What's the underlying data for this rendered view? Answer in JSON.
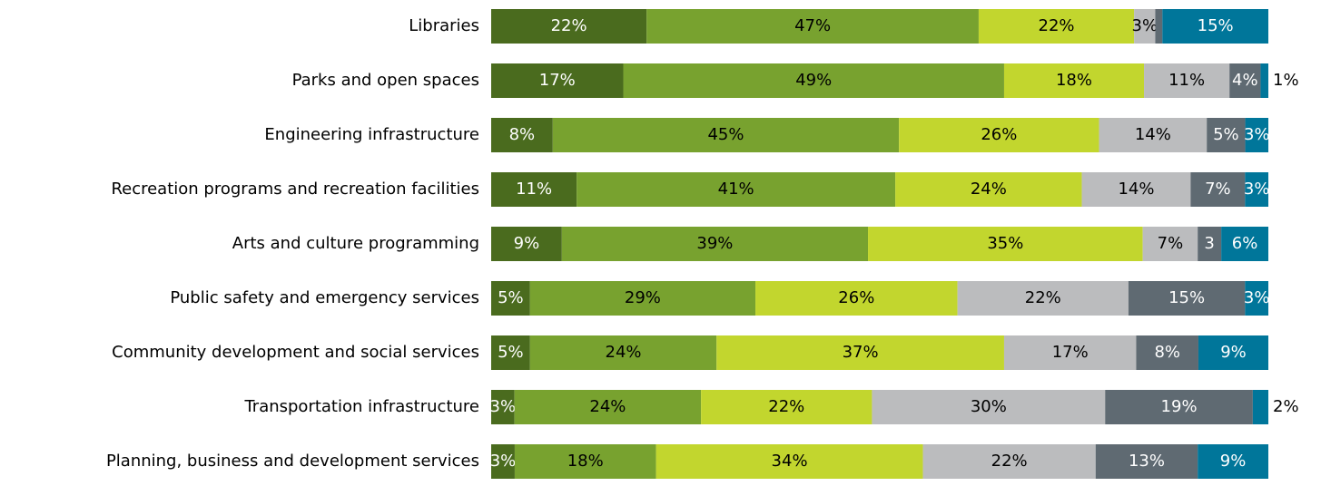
{
  "chart_data": {
    "type": "stacked-bar-100",
    "categories": [
      "Libraries",
      "Parks and open spaces",
      "Engineering infrastructure",
      "Recreation programs and recreation facilities",
      "Arts and culture programming",
      "Public safety and emergency services",
      "Community development and social services",
      "Transportation infrastructure",
      "Planning, business and development services"
    ],
    "series": [
      {
        "color": "#4a6b1e",
        "values": [
          22,
          17,
          8,
          11,
          9,
          5,
          5,
          3,
          3
        ],
        "value_labels": [
          "22%",
          "17%",
          "8%",
          "11%",
          "9%",
          "5%",
          "5%",
          "3%",
          "3%"
        ]
      },
      {
        "color": "#78a22f",
        "values": [
          47,
          49,
          45,
          41,
          39,
          29,
          24,
          24,
          18
        ],
        "value_labels": [
          "47%",
          "49%",
          "45%",
          "41%",
          "39%",
          "29%",
          "24%",
          "24%",
          "18%"
        ]
      },
      {
        "color": "#c2d62e",
        "values": [
          22,
          18,
          26,
          24,
          35,
          26,
          37,
          22,
          34
        ],
        "value_labels": [
          "22%",
          "18%",
          "26%",
          "24%",
          "35%",
          "26%",
          "37%",
          "22%",
          "34%"
        ]
      },
      {
        "color": "#bbbcbe",
        "values": [
          3,
          11,
          14,
          14,
          7,
          22,
          17,
          30,
          22
        ],
        "value_labels": [
          "3%",
          "11%",
          "14%",
          "14%",
          "7%",
          "22%",
          "17%",
          "30%",
          "22%"
        ]
      },
      {
        "color": "#5f6a72",
        "values": [
          1,
          4,
          5,
          7,
          3,
          15,
          8,
          19,
          13
        ],
        "value_labels": [
          null,
          "4%",
          "5%",
          "7%",
          "3",
          "15%",
          "8%",
          "19%",
          "13%"
        ]
      },
      {
        "color": "#00769a",
        "values": [
          15,
          1,
          3,
          3,
          6,
          3,
          9,
          2,
          9
        ],
        "value_labels": [
          "15%",
          "1%",
          "3%",
          "3%",
          "6%",
          "3%",
          "9%",
          "2%",
          "9%"
        ]
      }
    ]
  }
}
